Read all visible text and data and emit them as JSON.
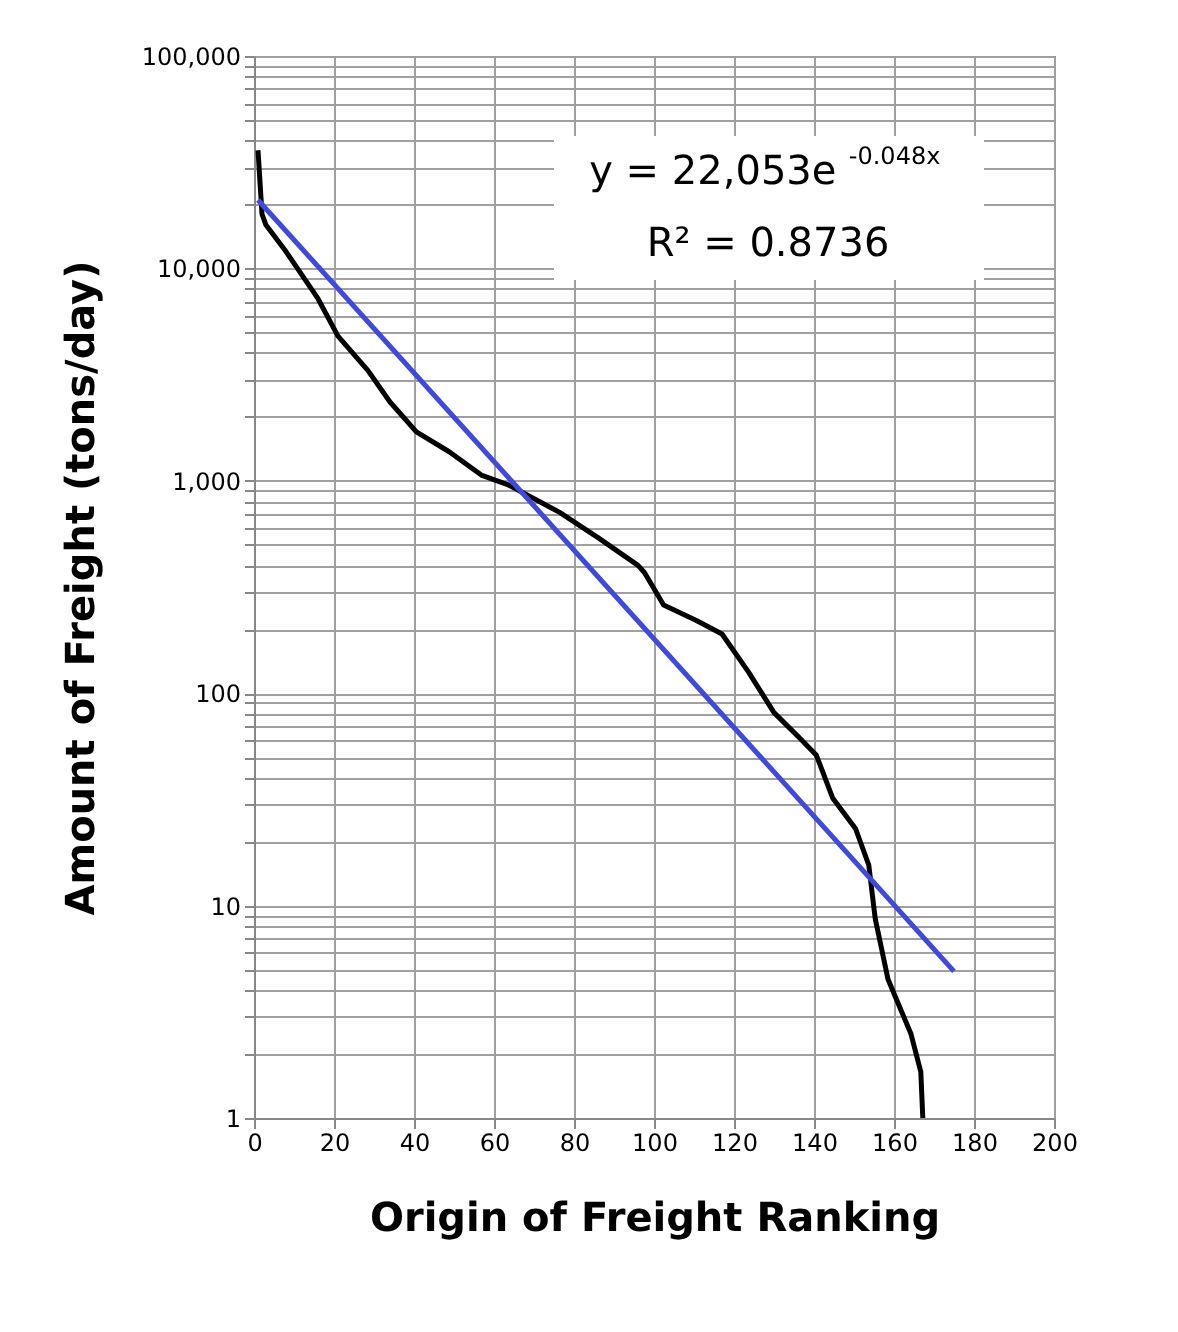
{
  "chart_data": {
    "type": "line",
    "xlabel": "Origin of Freight Ranking",
    "ylabel": "Amount of Freight (tons/day)",
    "log": "y",
    "grid": true,
    "marker": "none",
    "line_style": "solid",
    "xlim": [
      0,
      200
    ],
    "xticks": [
      0,
      20,
      40,
      60,
      80,
      100,
      120,
      140,
      160,
      180,
      200
    ],
    "ylim": [
      1,
      100000
    ],
    "yticks": [
      {
        "value": 1,
        "label": "1"
      },
      {
        "value": 2,
        "label": null
      },
      {
        "value": 3,
        "label": null
      },
      {
        "value": 4,
        "label": null
      },
      {
        "value": 5,
        "label": null
      },
      {
        "value": 6,
        "label": null
      },
      {
        "value": 7,
        "label": null
      },
      {
        "value": 8,
        "label": null
      },
      {
        "value": 9,
        "label": null
      },
      {
        "value": 10,
        "label": "10"
      },
      {
        "value": 20,
        "label": null
      },
      {
        "value": 30,
        "label": null
      },
      {
        "value": 40,
        "label": null
      },
      {
        "value": 50,
        "label": null
      },
      {
        "value": 60,
        "label": null
      },
      {
        "value": 70,
        "label": null
      },
      {
        "value": 80,
        "label": null
      },
      {
        "value": 90,
        "label": null
      },
      {
        "value": 100,
        "label": "100"
      },
      {
        "value": 200,
        "label": null
      },
      {
        "value": 300,
        "label": null
      },
      {
        "value": 400,
        "label": null
      },
      {
        "value": 500,
        "label": null
      },
      {
        "value": 600,
        "label": null
      },
      {
        "value": 700,
        "label": null
      },
      {
        "value": 800,
        "label": null
      },
      {
        "value": 900,
        "label": null
      },
      {
        "value": 1000,
        "label": "1,000"
      },
      {
        "value": 2000,
        "label": null
      },
      {
        "value": 3000,
        "label": null
      },
      {
        "value": 4000,
        "label": null
      },
      {
        "value": 5000,
        "label": null
      },
      {
        "value": 6000,
        "label": null
      },
      {
        "value": 7000,
        "label": null
      },
      {
        "value": 8000,
        "label": null
      },
      {
        "value": 9000,
        "label": null
      },
      {
        "value": 10000,
        "label": "10,000"
      },
      {
        "value": 20000,
        "label": null
      },
      {
        "value": 30000,
        "label": null
      },
      {
        "value": 40000,
        "label": null
      },
      {
        "value": 50000,
        "label": null
      },
      {
        "value": 60000,
        "label": null
      },
      {
        "value": 70000,
        "label": null
      },
      {
        "value": 80000,
        "label": null
      },
      {
        "value": 90000,
        "label": null
      },
      {
        "value": 100000,
        "label": "100,000"
      }
    ],
    "annotations": [
      "y = 22,053e$^{-0.048x}$",
      "R² = 0.8736"
    ],
    "series": [
      {
        "color": "#000000",
        "x": [
          1,
          2,
          3,
          8,
          16,
          21,
          28.5,
          34,
          40.6,
          48.8,
          57,
          63.4,
          76.4,
          86,
          96,
          97.6,
          102.4,
          110.6,
          117,
          123.6,
          130,
          136.6,
          140.6,
          144.7,
          150.4,
          153.7,
          155.3,
          158.5,
          164.2,
          166.7,
          167.2
        ],
        "values": [
          36000,
          18000,
          16000,
          12000,
          7200,
          4800,
          3300,
          2350,
          1700,
          1370,
          1060,
          960,
          710,
          540,
          400,
          370,
          260,
          220,
          190,
          126,
          81,
          61,
          51,
          32,
          23,
          15.5,
          8.7,
          4.5,
          2.5,
          1.65,
          1
        ]
      },
      {
        "color": "#3f48e0",
        "x": [
          1,
          175
        ],
        "values": [
          21000,
          4.9
        ]
      }
    ]
  }
}
